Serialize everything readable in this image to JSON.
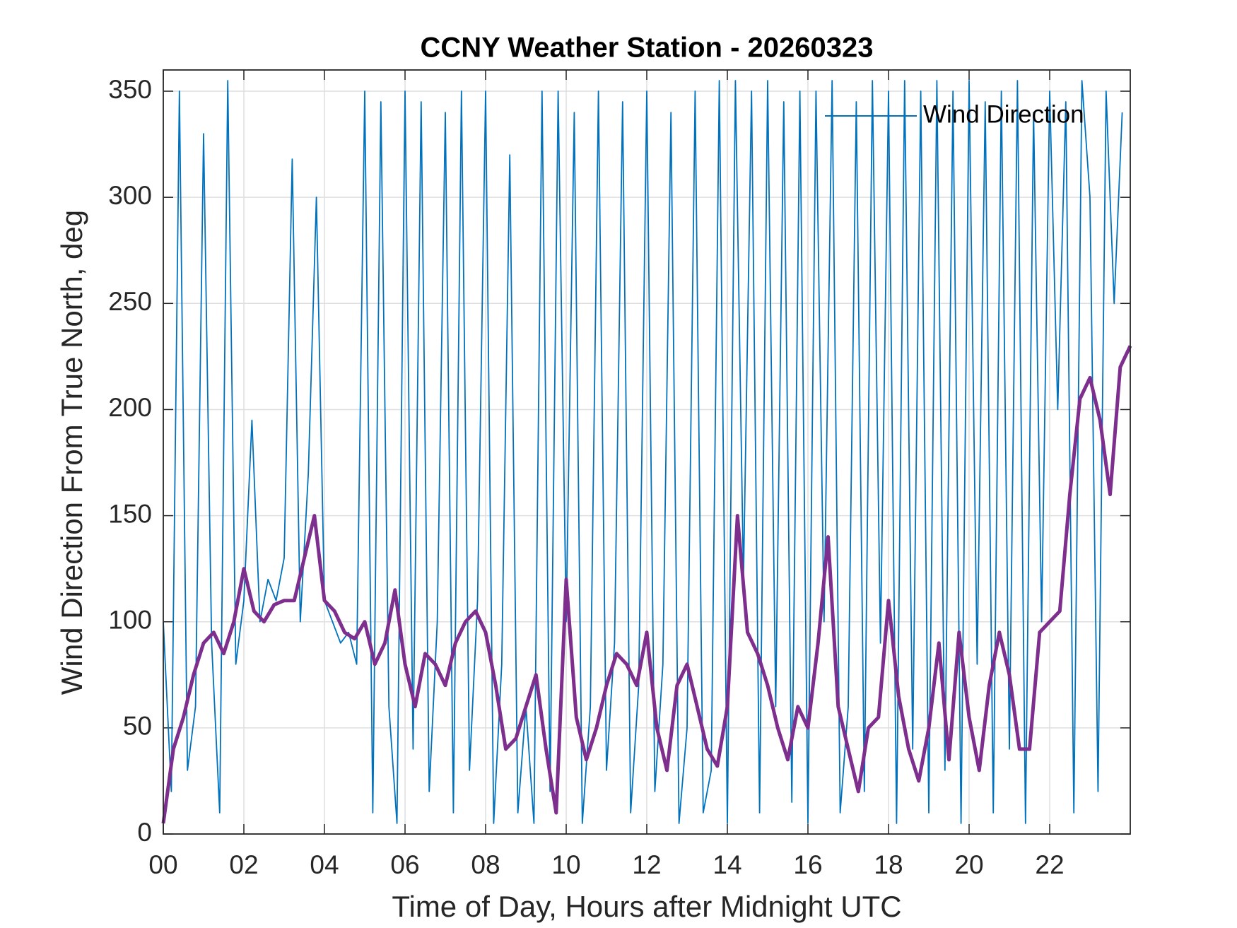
{
  "chart_data": {
    "type": "line",
    "title": "CCNY Weather Station - 20260323",
    "xlabel": "Time of Day, Hours after Midnight UTC",
    "ylabel": "Wind Direction From True North, deg",
    "xlim": [
      0,
      24
    ],
    "ylim": [
      0,
      360
    ],
    "xticks": [
      {
        "value": 0,
        "label": "00"
      },
      {
        "value": 2,
        "label": "02"
      },
      {
        "value": 4,
        "label": "04"
      },
      {
        "value": 6,
        "label": "06"
      },
      {
        "value": 8,
        "label": "08"
      },
      10,
      12,
      14,
      16,
      18,
      20,
      22
    ],
    "yticks": [
      0,
      50,
      100,
      150,
      200,
      250,
      300,
      350
    ],
    "grid": true,
    "legend": "upper right",
    "series": [
      {
        "name": "Wind Direction",
        "color": "#0072bd",
        "legend": true,
        "x": [
          0,
          0.2,
          0.4,
          0.6,
          0.8,
          1,
          1.2,
          1.4,
          1.6,
          1.8,
          2,
          2.2,
          2.4,
          2.6,
          2.8,
          3,
          3.2,
          3.4,
          3.6,
          3.8,
          4,
          4.2,
          4.4,
          4.6,
          4.8,
          5,
          5.2,
          5.4,
          5.6,
          5.8,
          6,
          6.2,
          6.4,
          6.6,
          6.8,
          7,
          7.2,
          7.4,
          7.6,
          7.8,
          8,
          8.2,
          8.4,
          8.6,
          8.8,
          9,
          9.2,
          9.4,
          9.6,
          9.8,
          10,
          10.2,
          10.4,
          10.6,
          10.8,
          11,
          11.2,
          11.4,
          11.6,
          11.8,
          12,
          12.2,
          12.4,
          12.6,
          12.8,
          13,
          13.2,
          13.4,
          13.6,
          13.8,
          14,
          14.2,
          14.4,
          14.6,
          14.8,
          15,
          15.2,
          15.4,
          15.6,
          15.8,
          16,
          16.2,
          16.4,
          16.6,
          16.8,
          17,
          17.2,
          17.4,
          17.6,
          17.8,
          18,
          18.2,
          18.4,
          18.6,
          18.8,
          19,
          19.2,
          19.4,
          19.6,
          19.8,
          20,
          20.2,
          20.4,
          20.6,
          20.8,
          21,
          21.2,
          21.4,
          21.6,
          21.8,
          22,
          22.2,
          22.4,
          22.6,
          22.8,
          23,
          23.2,
          23.4,
          23.6,
          23.8
        ],
        "values": [
          100,
          20,
          350,
          30,
          60,
          330,
          90,
          10,
          355,
          80,
          110,
          195,
          100,
          120,
          110,
          130,
          318,
          100,
          170,
          300,
          110,
          100,
          90,
          95,
          80,
          350,
          10,
          345,
          60,
          5,
          350,
          40,
          345,
          20,
          100,
          340,
          10,
          350,
          30,
          110,
          350,
          5,
          80,
          320,
          10,
          60,
          5,
          350,
          20,
          350,
          100,
          340,
          5,
          60,
          350,
          30,
          90,
          345,
          10,
          70,
          350,
          20,
          80,
          340,
          5,
          50,
          350,
          10,
          30,
          355,
          5,
          355,
          120,
          350,
          10,
          355,
          60,
          345,
          15,
          350,
          5,
          350,
          100,
          355,
          10,
          60,
          345,
          20,
          355,
          90,
          350,
          5,
          355,
          40,
          350,
          10,
          355,
          30,
          350,
          5,
          355,
          80,
          345,
          10,
          350,
          40,
          355,
          5,
          340,
          100,
          350,
          200,
          345,
          10,
          355,
          300,
          20,
          350,
          250,
          340
        ]
      },
      {
        "color": "#7e2f8e",
        "legend": false,
        "x": [
          0,
          0.25,
          0.5,
          0.75,
          1,
          1.25,
          1.5,
          1.75,
          2,
          2.25,
          2.5,
          2.75,
          3,
          3.25,
          3.5,
          3.75,
          4,
          4.25,
          4.5,
          4.75,
          5,
          5.25,
          5.5,
          5.75,
          6,
          6.25,
          6.5,
          6.75,
          7,
          7.25,
          7.5,
          7.75,
          8,
          8.25,
          8.5,
          8.75,
          9,
          9.25,
          9.5,
          9.75,
          10,
          10.25,
          10.5,
          10.75,
          11,
          11.25,
          11.5,
          11.75,
          12,
          12.25,
          12.5,
          12.75,
          13,
          13.25,
          13.5,
          13.75,
          14,
          14.25,
          14.5,
          14.75,
          15,
          15.25,
          15.5,
          15.75,
          16,
          16.25,
          16.5,
          16.75,
          17,
          17.25,
          17.5,
          17.75,
          18,
          18.25,
          18.5,
          18.75,
          19,
          19.25,
          19.5,
          19.75,
          20,
          20.25,
          20.5,
          20.75,
          21,
          21.25,
          21.5,
          21.75,
          22,
          22.25,
          22.5,
          22.75,
          23,
          23.25,
          23.5,
          23.75,
          24
        ],
        "values": [
          5,
          40,
          55,
          75,
          90,
          95,
          85,
          100,
          125,
          105,
          100,
          108,
          110,
          110,
          130,
          150,
          110,
          105,
          95,
          92,
          100,
          80,
          90,
          115,
          80,
          60,
          85,
          80,
          70,
          90,
          100,
          105,
          95,
          70,
          40,
          45,
          60,
          75,
          40,
          10,
          120,
          55,
          35,
          50,
          70,
          85,
          80,
          70,
          95,
          50,
          30,
          70,
          80,
          60,
          40,
          32,
          60,
          150,
          95,
          85,
          70,
          50,
          35,
          60,
          50,
          90,
          140,
          60,
          40,
          20,
          50,
          55,
          110,
          65,
          40,
          25,
          50,
          90,
          35,
          95,
          55,
          30,
          70,
          95,
          75,
          40,
          40,
          95,
          100,
          105,
          160,
          205,
          215,
          195,
          160,
          220,
          230
        ]
      }
    ]
  }
}
